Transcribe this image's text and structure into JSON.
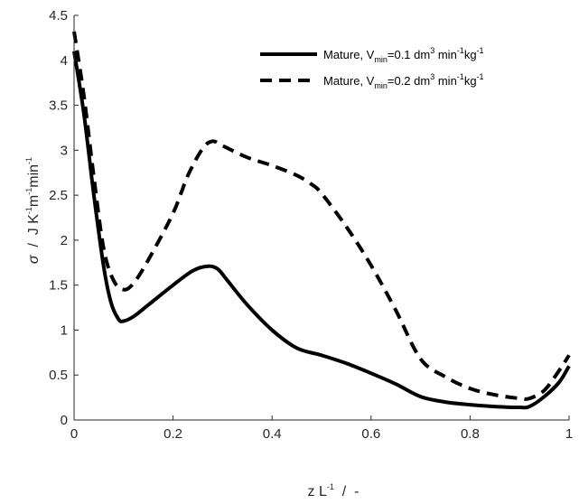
{
  "chart_data": {
    "type": "line",
    "xlim": [
      0,
      1
    ],
    "ylim": [
      0,
      4.5
    ],
    "x_ticks": [
      "0",
      "0.2",
      "0.4",
      "0.6",
      "0.8",
      "1"
    ],
    "y_ticks": [
      "0",
      "0.5",
      "1",
      "1.5",
      "2",
      "2.5",
      "3",
      "3.5",
      "4",
      "4.5"
    ],
    "xlabel": {
      "main": "z L",
      "sup": "-1",
      "tail": "  /  -"
    },
    "ylabel": {
      "sigma": "σ",
      "part1": "  /  J K",
      "sup1": "-1",
      "part2": "m",
      "sup2": "-1",
      "part3": "min",
      "sup3": "-1"
    },
    "grid": false,
    "legend_position": "top-right",
    "series": [
      {
        "name": "Mature, V_min=0.1 dm3 min-1kg-1",
        "legend": {
          "prefix": "Mature, V",
          "sub": "min",
          "mid": "=0.1 dm",
          "sup": "3",
          "mid2": " min",
          "sup2": "-1",
          "mid3": "kg",
          "sup3": "-1"
        },
        "style": "solid",
        "color": "#000000",
        "x": [
          0,
          0.02,
          0.04,
          0.06,
          0.075,
          0.09,
          0.1,
          0.12,
          0.15,
          0.2,
          0.24,
          0.27,
          0.29,
          0.31,
          0.35,
          0.4,
          0.45,
          0.5,
          0.55,
          0.6,
          0.65,
          0.7,
          0.75,
          0.8,
          0.85,
          0.9,
          0.92,
          0.95,
          0.98,
          1.0
        ],
        "y": [
          4.1,
          3.4,
          2.5,
          1.7,
          1.3,
          1.12,
          1.1,
          1.15,
          1.28,
          1.5,
          1.66,
          1.71,
          1.68,
          1.55,
          1.28,
          1.0,
          0.8,
          0.72,
          0.63,
          0.52,
          0.4,
          0.26,
          0.2,
          0.17,
          0.15,
          0.14,
          0.15,
          0.26,
          0.42,
          0.6
        ]
      },
      {
        "name": "Mature, V_min=0.2 dm3 min-1kg-1",
        "legend": {
          "prefix": "Mature, V",
          "sub": "min",
          "mid": "=0.2 dm",
          "sup": "3",
          "mid2": " min",
          "sup2": "-1",
          "mid3": "kg",
          "sup3": "-1"
        },
        "style": "dashed",
        "color": "#000000",
        "x": [
          0,
          0.02,
          0.04,
          0.06,
          0.08,
          0.1,
          0.12,
          0.15,
          0.2,
          0.23,
          0.26,
          0.28,
          0.3,
          0.35,
          0.4,
          0.45,
          0.48,
          0.5,
          0.55,
          0.6,
          0.65,
          0.7,
          0.75,
          0.8,
          0.85,
          0.9,
          0.92,
          0.95,
          0.98,
          1.0
        ],
        "y": [
          4.32,
          3.6,
          2.7,
          1.9,
          1.55,
          1.45,
          1.52,
          1.78,
          2.3,
          2.72,
          3.02,
          3.1,
          3.05,
          2.92,
          2.83,
          2.72,
          2.62,
          2.52,
          2.15,
          1.72,
          1.22,
          0.68,
          0.48,
          0.35,
          0.28,
          0.24,
          0.24,
          0.33,
          0.55,
          0.72
        ]
      }
    ]
  }
}
